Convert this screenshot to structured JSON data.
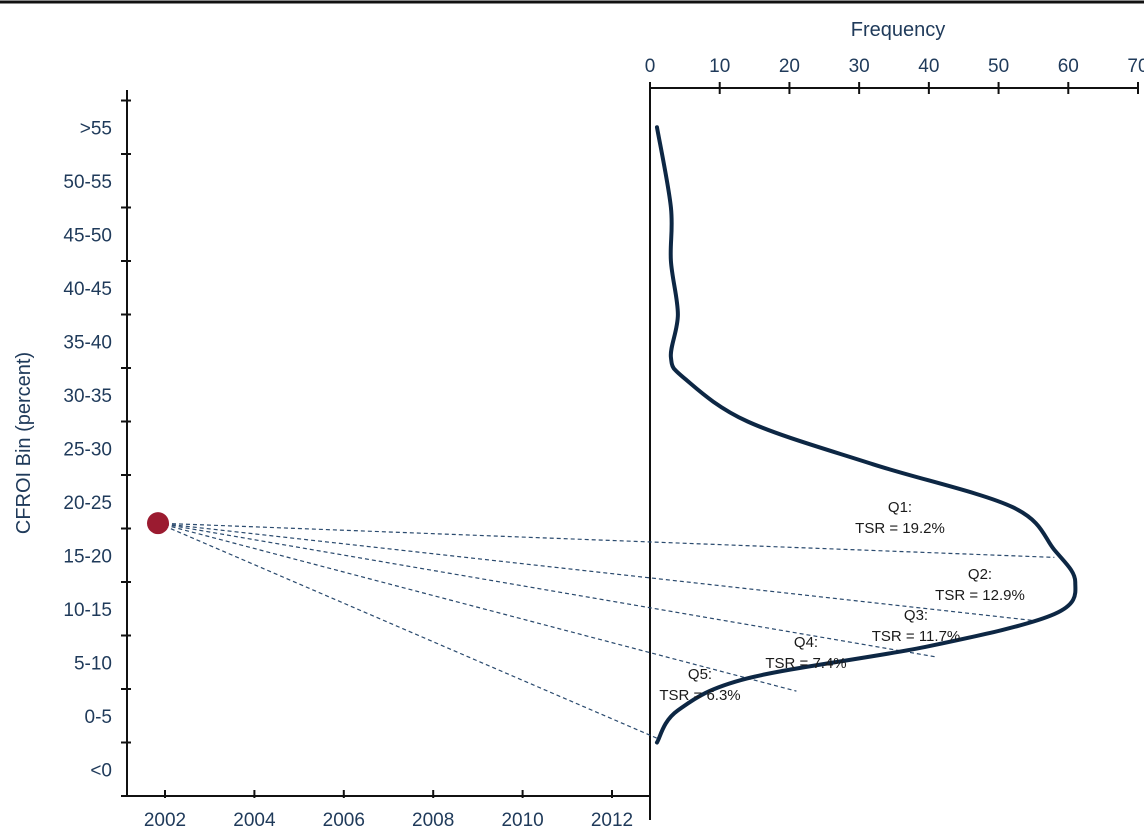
{
  "chart_data": {
    "type": "line",
    "title": "",
    "ylabel": "CFROI Bin (percent)",
    "xlabel": "",
    "y_categories": [
      "<0",
      "0-5",
      "5-10",
      "10-15",
      "15-20",
      "20-25",
      "25-30",
      "30-35",
      "35-40",
      "40-45",
      "45-50",
      "50-55",
      ">55"
    ],
    "time_axis": {
      "ticks": [
        "2002",
        "2004",
        "2006",
        "2008",
        "2010",
        "2012"
      ],
      "range": [
        2002,
        2012
      ]
    },
    "frequency_axis": {
      "label": "Frequency",
      "ticks": [
        "0",
        "10",
        "20",
        "30",
        "40",
        "50",
        "60",
        "70"
      ],
      "range": [
        0,
        70
      ]
    },
    "highlight_point": {
      "year": 2002,
      "cfroi": 20.5,
      "color": "#9b1b30"
    },
    "distribution_curve": {
      "points": [
        {
          "cfroi": 57.5,
          "frequency": 1
        },
        {
          "cfroi": 50,
          "frequency": 3
        },
        {
          "cfroi": 45,
          "frequency": 3
        },
        {
          "cfroi": 40,
          "frequency": 4
        },
        {
          "cfroi": 36,
          "frequency": 3
        },
        {
          "cfroi": 34,
          "frequency": 5
        },
        {
          "cfroi": 30,
          "frequency": 14
        },
        {
          "cfroi": 26,
          "frequency": 32
        },
        {
          "cfroi": 22,
          "frequency": 52
        },
        {
          "cfroi": 18,
          "frequency": 58
        },
        {
          "cfroi": 15,
          "frequency": 61
        },
        {
          "cfroi": 12,
          "frequency": 58
        },
        {
          "cfroi": 9,
          "frequency": 40
        },
        {
          "cfroi": 6,
          "frequency": 14
        },
        {
          "cfroi": 3,
          "frequency": 4
        },
        {
          "cfroi": 0,
          "frequency": 1
        }
      ],
      "color": "#0d2744"
    },
    "quintiles": [
      {
        "label": "Q1:",
        "tsr": "TSR = 19.2%",
        "target": {
          "cfroi": 17.3,
          "frequency": 58
        }
      },
      {
        "label": "Q2:",
        "tsr": "TSR = 12.9%",
        "target": {
          "cfroi": 11.4,
          "frequency": 55
        }
      },
      {
        "label": "Q3:",
        "tsr": "TSR = 11.7%",
        "target": {
          "cfroi": 8.0,
          "frequency": 41
        }
      },
      {
        "label": "Q4:",
        "tsr": "TSR = 7.4%",
        "target": {
          "cfroi": 4.8,
          "frequency": 21
        }
      },
      {
        "label": "Q5:",
        "tsr": "TSR = 6.3%",
        "target": {
          "cfroi": 0.4,
          "frequency": 1
        }
      }
    ],
    "colors": {
      "axis_text": "#1f3a5a",
      "axis_line": "#111111",
      "dashed": "#2a4a6e"
    }
  }
}
